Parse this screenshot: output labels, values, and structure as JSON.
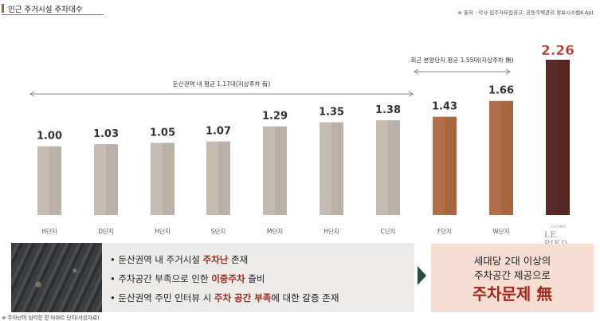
{
  "header": {
    "title": "인근 주거시설 주차대수",
    "source": "※ 출처 : 각사 입주자모집공고, 공동주택관리 정보시스템K-Apt"
  },
  "chart_data": {
    "type": "bar",
    "categories": [
      "H단지",
      "D단지",
      "H단지",
      "S단지",
      "M단지",
      "H단지",
      "C단지",
      "F단지",
      "W단지",
      ""
    ],
    "values": [
      1.0,
      1.03,
      1.05,
      1.07,
      1.29,
      1.35,
      1.38,
      1.43,
      1.66,
      2.26
    ],
    "value_labels": [
      "1.00",
      "1.03",
      "1.05",
      "1.07",
      "1.29",
      "1.35",
      "1.38",
      "1.43",
      "1.66",
      "2.26"
    ],
    "colors": {
      "existing": "#c6bbb0",
      "recent": "#b26e48",
      "highlight": "#5a2a28",
      "highlight_label": "#c0302a"
    },
    "groups": [
      "existing",
      "existing",
      "existing",
      "existing",
      "existing",
      "existing",
      "existing",
      "recent",
      "recent",
      "highlight"
    ],
    "annotations": [
      {
        "text": "둔산권역 내 평균 1.17대(지상주차 有)"
      },
      {
        "text": "최근 분양단지 평균 1.55대(지상주차 無)"
      }
    ],
    "ylim": [
      0,
      2.4
    ],
    "grid": false,
    "legend": "none"
  },
  "logo": {
    "small": "GRAND",
    "name": "LE PIED"
  },
  "bottom": {
    "bullets": [
      {
        "pre": "• 둔산권역 내 주거시설 ",
        "hl": "주차난",
        "post": " 존재"
      },
      {
        "pre": "• 주차공간 부족으로 인한 ",
        "hl": "이중주차",
        "post": " 즐비"
      },
      {
        "pre": "• 둔산권역 주민 인터뷰 시 ",
        "hl": "주차 공간 부족",
        "post": "에 대한 갈증 존재"
      }
    ],
    "footnote": "※ 주차난이 심각한 한 아파트 단지(사진자료)",
    "right_line1": "세대당 2대 이상의",
    "right_line2": "주차공간 제공으로",
    "right_line3": "주차문제 無"
  }
}
